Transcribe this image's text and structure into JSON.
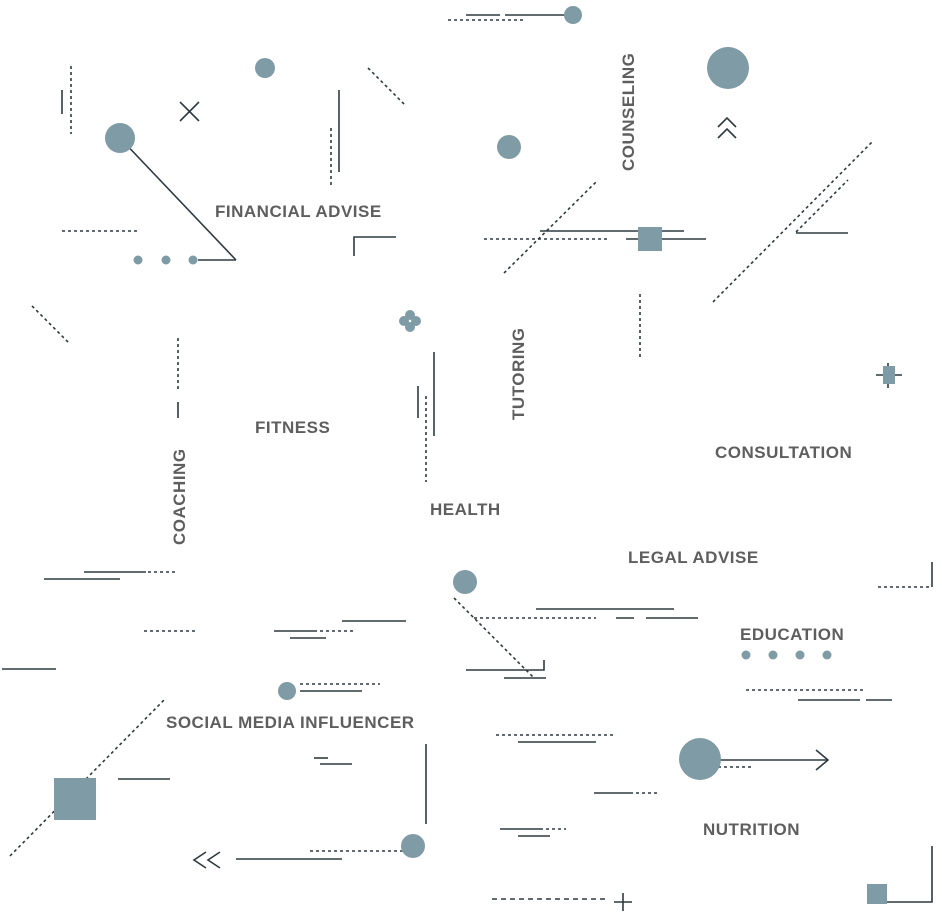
{
  "colors": {
    "text": "#5e5e5e",
    "line": "#2f3a40",
    "accent": "#7f9ba5",
    "background": "#ffffff"
  },
  "labels": {
    "financial_advise": "FINANCIAL ADVISE",
    "counseling": "COUNSELING",
    "tutoring": "TUTORING",
    "fitness": "FITNESS",
    "coaching": "COACHING",
    "consultation": "CONSULTATION",
    "health": "HEALTH",
    "legal_advise": "LEGAL ADVISE",
    "education": "EDUCATION",
    "social_media_influencer": "SOCIAL MEDIA INFLUENCER",
    "nutrition": "NUTRITION"
  }
}
